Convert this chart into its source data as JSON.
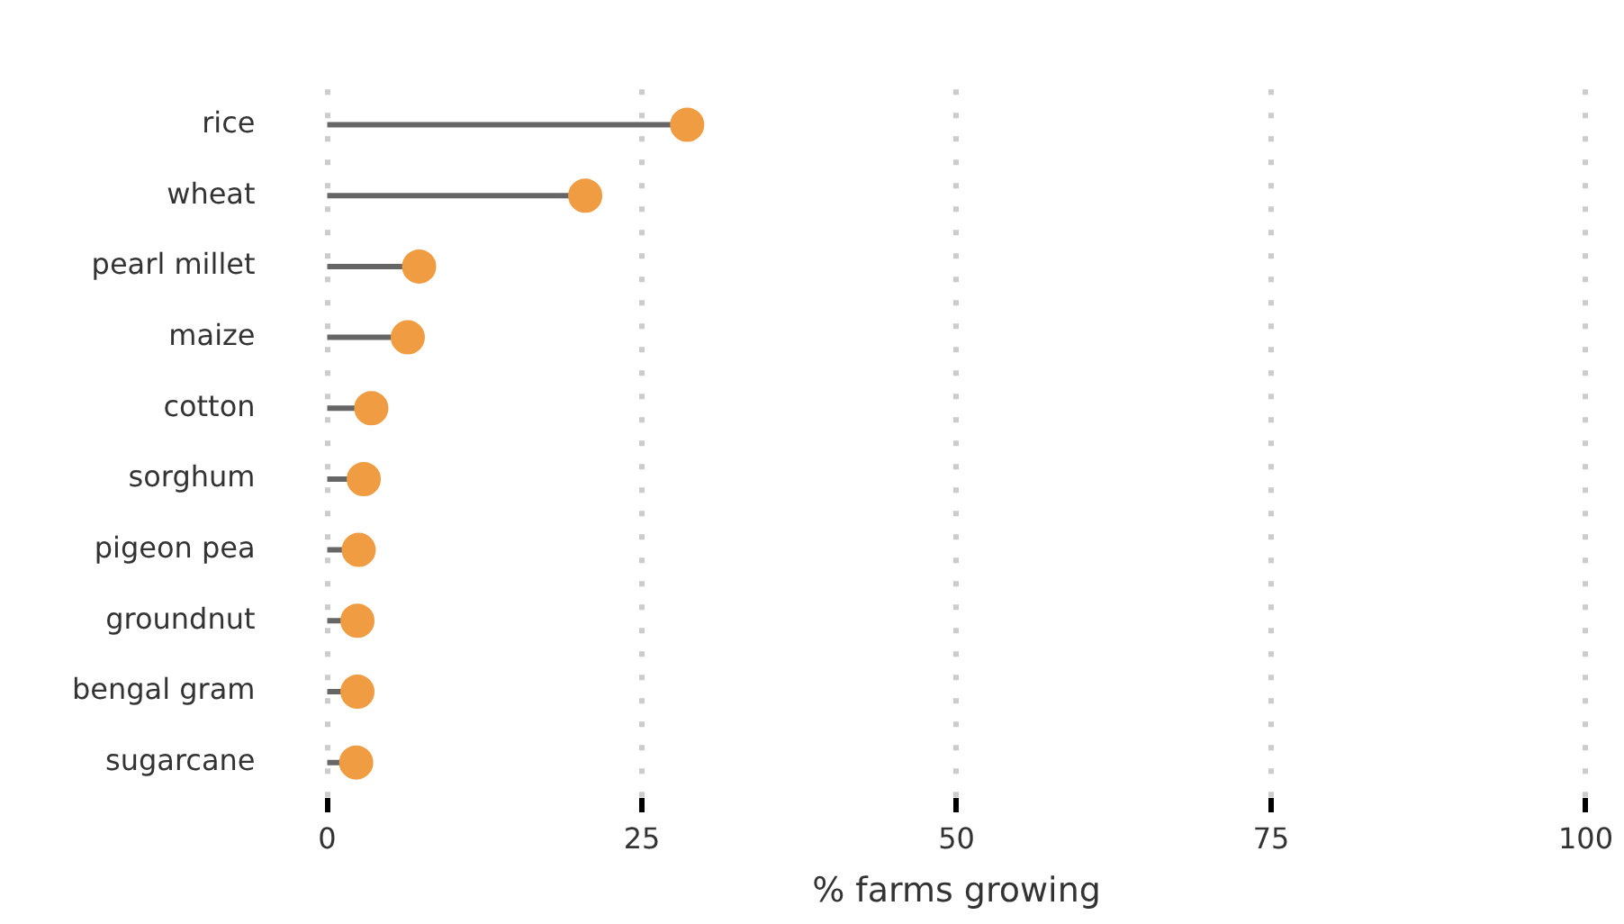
{
  "chart_data": {
    "type": "lollipop",
    "orientation": "horizontal",
    "xlabel": "% farms growing",
    "categories": [
      "rice",
      "wheat",
      "pearl millet",
      "maize",
      "cotton",
      "sorghum",
      "pigeon pea",
      "groundnut",
      "bengal gram",
      "sugarcane"
    ],
    "series": [
      {
        "color": "#f09c42",
        "values": [
          28.6,
          20.5,
          7.3,
          6.4,
          3.5,
          2.9,
          2.5,
          2.4,
          2.4,
          2.3
        ]
      }
    ],
    "xlim": [
      0,
      100
    ],
    "xticks": [
      0,
      25,
      50,
      75,
      100
    ],
    "grid": "x",
    "marker": "circle",
    "legend": false
  }
}
